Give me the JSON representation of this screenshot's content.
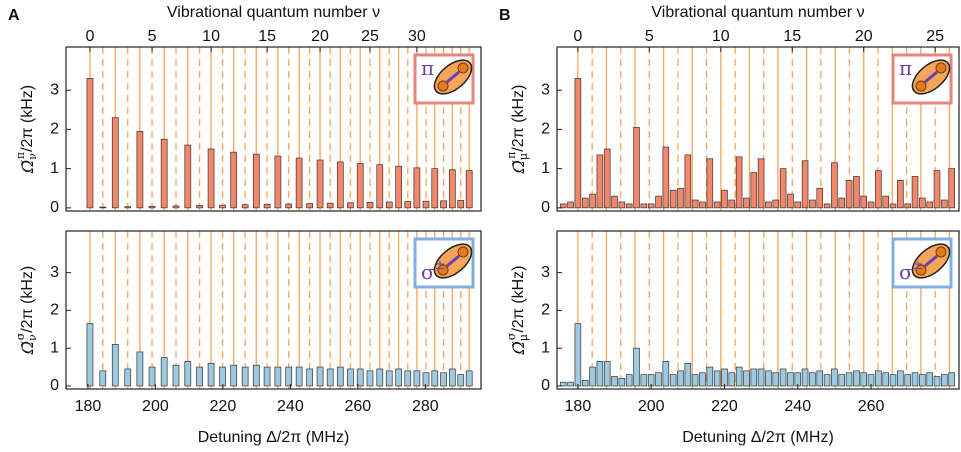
{
  "chart_data": [
    {
      "type": "bar",
      "label": "A",
      "x2label": "Vibrational quantum number ν",
      "xlabel": "Detuning Δ/2π (MHz)",
      "xlim": [
        173.5,
        296.5
      ],
      "xticks": [
        180,
        200,
        220,
        240,
        260,
        280
      ],
      "levels": [
        180.6,
        184.4,
        188.1,
        191.8,
        195.4,
        199.0,
        202.6,
        206.1,
        209.6,
        213.1,
        216.5,
        219.9,
        223.2,
        226.6,
        229.9,
        233.1,
        236.3,
        239.5,
        242.6,
        245.7,
        248.8,
        251.8,
        254.8,
        257.8,
        260.7,
        263.6,
        266.5,
        269.3,
        272.1,
        274.8,
        277.5,
        280.2,
        282.8,
        285.4,
        288.0,
        290.5,
        293.0
      ],
      "x2ticks": [
        0,
        5,
        10,
        15,
        20,
        25,
        30
      ],
      "x": [
        180.6,
        184.4,
        188.1,
        191.8,
        195.4,
        199.0,
        202.6,
        206.1,
        209.6,
        213.1,
        216.5,
        219.9,
        223.2,
        226.6,
        229.9,
        233.1,
        236.3,
        239.5,
        242.6,
        245.7,
        248.8,
        251.8,
        254.8,
        257.8,
        260.7,
        263.6,
        266.5,
        269.3,
        272.1,
        274.8,
        277.5,
        280.2,
        282.8,
        285.4,
        288.0,
        290.5,
        293.0
      ],
      "ylim": [
        -0.08,
        4.1
      ],
      "yticks": [
        0,
        1,
        2,
        3
      ],
      "panels": [
        {
          "ylabel": {
            "symbol": "Ω̃",
            "sub": "ν",
            "sup": "π",
            "rest": "/2π (kHz)"
          },
          "badge": {
            "symbol": "π",
            "sup": ""
          },
          "color": "#f4876a",
          "frame": "#e8837a",
          "values": [
            3.3,
            0.02,
            2.3,
            0.03,
            1.95,
            0.04,
            1.75,
            0.05,
            1.6,
            0.06,
            1.5,
            0.07,
            1.42,
            0.08,
            1.37,
            0.09,
            1.32,
            0.1,
            1.27,
            0.11,
            1.22,
            0.12,
            1.17,
            0.13,
            1.13,
            0.14,
            1.1,
            0.15,
            1.06,
            0.16,
            1.02,
            0.17,
            1.0,
            0.18,
            0.97,
            0.19,
            0.95
          ]
        },
        {
          "ylabel": {
            "symbol": "Ω̃",
            "sub": "ν",
            "sup": "σ",
            "rest": "/2π (kHz)"
          },
          "badge": {
            "symbol": "σ",
            "sup": "±"
          },
          "color": "#9ecae1",
          "frame": "#7fb0e0",
          "values": [
            1.65,
            0.4,
            1.1,
            0.45,
            0.9,
            0.5,
            0.75,
            0.55,
            0.65,
            0.5,
            0.6,
            0.5,
            0.55,
            0.5,
            0.55,
            0.5,
            0.5,
            0.5,
            0.5,
            0.45,
            0.5,
            0.45,
            0.5,
            0.45,
            0.45,
            0.4,
            0.45,
            0.4,
            0.45,
            0.4,
            0.4,
            0.35,
            0.4,
            0.35,
            0.45,
            0.3,
            0.4
          ]
        }
      ]
    },
    {
      "type": "bar",
      "label": "B",
      "x2label": "Vibrational quantum number ν",
      "xlabel": "Detuning Δ/2π (MHz)",
      "xlim": [
        174.3,
        284
      ],
      "xticks": [
        180,
        200,
        220,
        240,
        260
      ],
      "levels": [
        180,
        183.9,
        187.8,
        191.7,
        195.6,
        199.5,
        203.4,
        207.3,
        211.2,
        215.1,
        219,
        222.9,
        226.8,
        230.7,
        234.6,
        238.5,
        242.4,
        246.3,
        250.2,
        254.1,
        258,
        261.9,
        265.8,
        269.7,
        273.6,
        277.5,
        281.4
      ],
      "x2ticks": [
        0,
        5,
        10,
        15,
        20,
        25
      ],
      "x": [
        176,
        178,
        180,
        182,
        184,
        186,
        188,
        190,
        192,
        194,
        196,
        198,
        200,
        202,
        204,
        206,
        208,
        210,
        212,
        214,
        216,
        218,
        220,
        222,
        224,
        226,
        228,
        230,
        232,
        234,
        236,
        238,
        240,
        242,
        244,
        246,
        248,
        250,
        252,
        254,
        256,
        258,
        260,
        262,
        264,
        266,
        268,
        270,
        272,
        274,
        276,
        278,
        280,
        282
      ],
      "ylim": [
        -0.08,
        4.1
      ],
      "yticks": [
        0,
        1,
        2,
        3
      ],
      "panels": [
        {
          "ylabel": {
            "symbol": "Ω̃",
            "sub": "μ",
            "sup": "π",
            "rest": "/2π (kHz)"
          },
          "badge": {
            "symbol": "π",
            "sup": ""
          },
          "color": "#f4876a",
          "frame": "#e8837a",
          "values": [
            0.1,
            0.15,
            3.3,
            0.25,
            0.35,
            1.35,
            1.5,
            0.3,
            0.15,
            0.1,
            2.05,
            0.1,
            0.1,
            0.3,
            1.55,
            0.45,
            0.5,
            1.35,
            0.2,
            0.15,
            1.25,
            0.15,
            0.45,
            0.2,
            1.3,
            0.25,
            0.9,
            1.25,
            0.15,
            0.2,
            1.0,
            0.35,
            0.15,
            1.2,
            0.2,
            0.5,
            0.1,
            1.15,
            0.25,
            0.7,
            0.8,
            0.3,
            0.15,
            0.95,
            0.3,
            0.1,
            0.7,
            0.1,
            0.8,
            0.25,
            0.15,
            0.95,
            0.2,
            1.0
          ]
        },
        {
          "ylabel": {
            "symbol": "Ω̃",
            "sub": "μ",
            "sup": "σ",
            "rest": "/2π (kHz)"
          },
          "badge": {
            "symbol": "σ",
            "sup": "±"
          },
          "color": "#9ecae1",
          "frame": "#7fb0e0",
          "values": [
            0.1,
            0.1,
            1.65,
            0.15,
            0.5,
            0.65,
            0.65,
            0.25,
            0.2,
            0.3,
            1.0,
            0.3,
            0.3,
            0.35,
            0.65,
            0.3,
            0.4,
            0.6,
            0.3,
            0.35,
            0.5,
            0.4,
            0.45,
            0.35,
            0.5,
            0.4,
            0.45,
            0.45,
            0.4,
            0.35,
            0.45,
            0.35,
            0.35,
            0.45,
            0.35,
            0.4,
            0.3,
            0.45,
            0.3,
            0.35,
            0.4,
            0.35,
            0.3,
            0.4,
            0.35,
            0.3,
            0.4,
            0.3,
            0.35,
            0.3,
            0.35,
            0.25,
            0.3,
            0.35
          ]
        }
      ]
    }
  ]
}
